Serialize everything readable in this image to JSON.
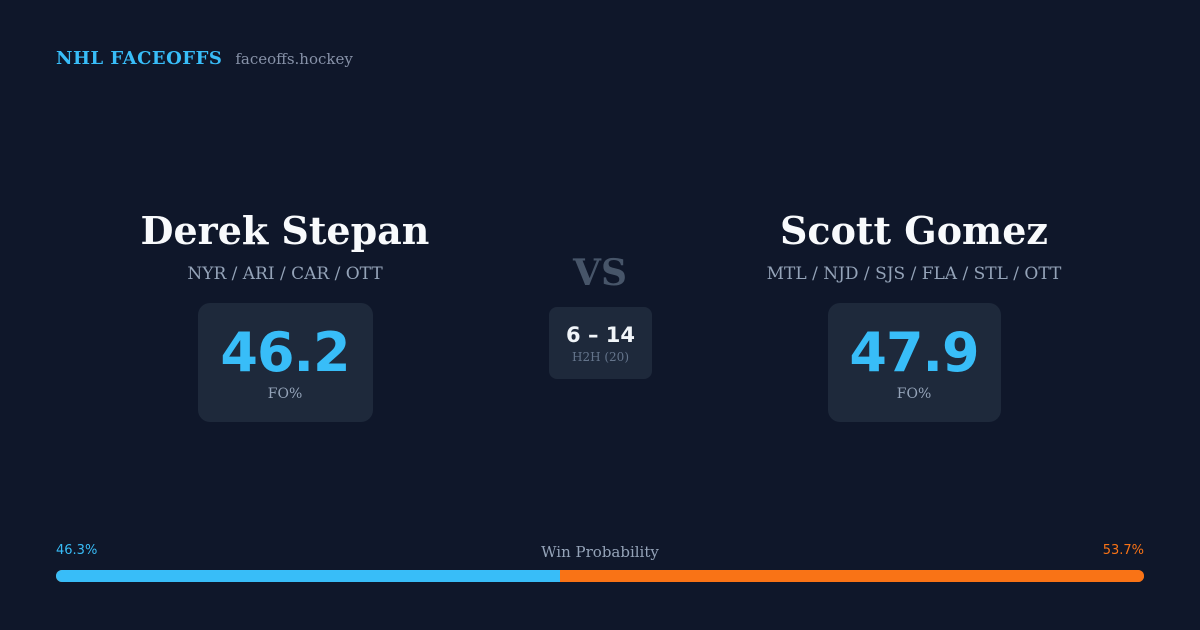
{
  "brand": {
    "name": "NHL FACEOFFS",
    "domain": "faceoffs.hockey"
  },
  "player_left": {
    "name": "Derek Stepan",
    "teams": "NYR / ARI / CAR / OTT",
    "stat_value": "46.2",
    "stat_label": "FO%"
  },
  "player_right": {
    "name": "Scott Gomez",
    "teams": "MTL / NJD / SJS / FLA / STL / OTT",
    "stat_value": "47.9",
    "stat_label": "FO%"
  },
  "matchup": {
    "vs_label": "VS",
    "h2h_score": "6 – 14",
    "h2h_label": "H2H (20)"
  },
  "win_probability": {
    "title": "Win Probability",
    "left_label": "46.3%",
    "right_label": "53.7%",
    "left_fraction": 0.463,
    "right_fraction": 0.537
  },
  "colors": {
    "background": "#0f172a",
    "card": "#1e293b",
    "accent_left": "#38bdf8",
    "accent_right": "#f97316",
    "muted_text": "#94a3b8"
  }
}
